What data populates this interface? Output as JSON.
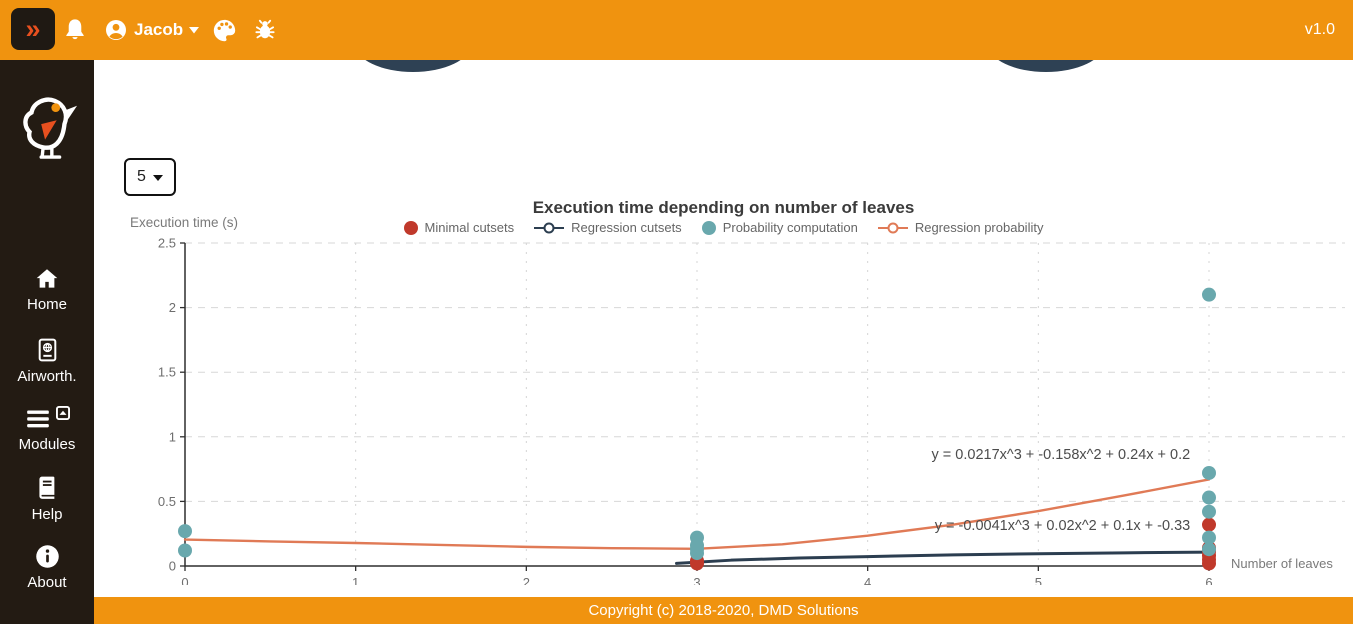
{
  "header": {
    "toggle_icon": "»",
    "icons": [
      "sidebar-toggle-icon",
      "bell-icon",
      "user-icon",
      "caret-down-icon",
      "palette-icon",
      "bug-icon"
    ],
    "user_name": "Jacob",
    "version": "v1.0"
  },
  "sidebar": {
    "logo_icon": "bird-logo",
    "items": [
      {
        "label": "Home",
        "icon": "home-icon"
      },
      {
        "label": "Airworth.",
        "icon": "passport-icon"
      },
      {
        "label": "Modules",
        "icon": "menu-bars-icon"
      },
      {
        "label": "Help",
        "icon": "book-icon"
      },
      {
        "label": "About",
        "icon": "info-icon"
      }
    ]
  },
  "toolbar": {
    "selected_value": "5"
  },
  "colors": {
    "accent_orange": "#f0930f",
    "sidebar_bg": "#231b13",
    "minimal_cutsets_red": "#c0392b",
    "probability_teal": "#69a8ad",
    "regression_cutsets_navy": "#2c3e50",
    "regression_probability_salmon": "#e07a56"
  },
  "footer": {
    "copyright": "Copyright (c) 2018-2020, DMD Solutions"
  },
  "chart_data": {
    "type": "scatter",
    "title": "Execution time depending on number of leaves",
    "xlabel": "Number of leaves",
    "ylabel": "Execution time (s)",
    "xlim": [
      0,
      6
    ],
    "ylim": [
      0,
      2.5
    ],
    "x_ticks": [
      "0",
      "1",
      "2",
      "3",
      "4",
      "5",
      "6"
    ],
    "y_ticks": [
      "0",
      "0.5",
      "1",
      "1.5",
      "2",
      "2.5"
    ],
    "grid": true,
    "legend_position": "top",
    "series": [
      {
        "name": "Minimal cutsets",
        "kind": "scatter",
        "color": "#c0392b",
        "points": [
          [
            3,
            0.02
          ],
          [
            3,
            0.04
          ],
          [
            6,
            0.02
          ],
          [
            6,
            0.05
          ],
          [
            6,
            0.08
          ],
          [
            6,
            0.11
          ],
          [
            6,
            0.14
          ],
          [
            6,
            0.32
          ]
        ]
      },
      {
        "name": "Regression cutsets",
        "kind": "line",
        "color": "#2c3e50",
        "line_width": 3,
        "points": [
          [
            2.88,
            0.02
          ],
          [
            3.2,
            0.045
          ],
          [
            3.6,
            0.062
          ],
          [
            4,
            0.073
          ],
          [
            4.5,
            0.086
          ],
          [
            5,
            0.095
          ],
          [
            5.5,
            0.102
          ],
          [
            6,
            0.107
          ]
        ]
      },
      {
        "name": "Probability computation",
        "kind": "scatter",
        "color": "#69a8ad",
        "points": [
          [
            0,
            0.12
          ],
          [
            0,
            0.27
          ],
          [
            3,
            0.1
          ],
          [
            3,
            0.13
          ],
          [
            3,
            0.16
          ],
          [
            3,
            0.22
          ],
          [
            6,
            0.13
          ],
          [
            6,
            0.22
          ],
          [
            6,
            0.42
          ],
          [
            6,
            0.53
          ],
          [
            6,
            0.72
          ],
          [
            6,
            2.1
          ]
        ]
      },
      {
        "name": "Regression probability",
        "kind": "line",
        "color": "#e07a56",
        "line_width": 2.4,
        "points": [
          [
            0,
            0.205
          ],
          [
            0.5,
            0.19
          ],
          [
            1,
            0.178
          ],
          [
            1.5,
            0.163
          ],
          [
            2,
            0.148
          ],
          [
            2.5,
            0.138
          ],
          [
            3,
            0.133
          ],
          [
            3.5,
            0.168
          ],
          [
            4,
            0.235
          ],
          [
            4.5,
            0.32
          ],
          [
            5,
            0.425
          ],
          [
            5.5,
            0.545
          ],
          [
            6,
            0.67
          ]
        ]
      }
    ],
    "annotations": [
      {
        "text": "y = 0.0217x^3 + -0.158x^2 + 0.24x + 0.2",
        "x": 5.89,
        "y": 0.83,
        "anchor": "end"
      },
      {
        "text": "y = -0.0041x^3 + 0.02x^2 + 0.1x + -0.33",
        "x": 5.89,
        "y": 0.28,
        "anchor": "end"
      }
    ]
  }
}
